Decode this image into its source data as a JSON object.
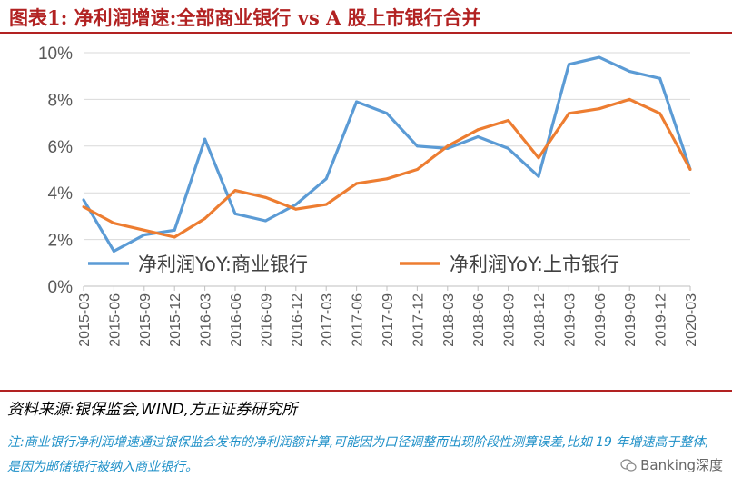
{
  "title": "图表1:  净利润增速:全部商业银行 vs  A 股上市银行合并",
  "source": "资料来源:银保监会,WIND,方正证券研究所",
  "note": "注:商业银行净利润增速通过银保监会发布的净利润额计算,可能因为口径调整而出现阶段性测算误差,比如 19 年增速高于整体,是因为邮储银行被纳入商业银行。",
  "watermark": "Banking深度",
  "icon": "wechat-icon",
  "colors": {
    "title": "#b22222",
    "series1": "#5b9bd5",
    "series2": "#ed7d31",
    "note": "#1e90c8"
  },
  "chart_data": {
    "type": "line",
    "categories": [
      "2015-03",
      "2015-06",
      "2015-09",
      "2015-12",
      "2016-03",
      "2016-06",
      "2016-09",
      "2016-12",
      "2017-03",
      "2017-06",
      "2017-09",
      "2017-12",
      "2018-03",
      "2018-06",
      "2018-09",
      "2018-12",
      "2019-03",
      "2019-06",
      "2019-09",
      "2019-12",
      "2020-03"
    ],
    "series": [
      {
        "name": "净利润YoY:商业银行",
        "values": [
          3.7,
          1.5,
          2.2,
          2.4,
          6.3,
          3.1,
          2.8,
          3.5,
          4.6,
          7.9,
          7.4,
          6.0,
          5.9,
          6.4,
          5.9,
          4.7,
          9.5,
          9.8,
          9.2,
          8.9,
          5.0
        ]
      },
      {
        "name": "净利润YoY:上市银行",
        "values": [
          3.4,
          2.7,
          2.4,
          2.1,
          2.9,
          4.1,
          3.8,
          3.3,
          3.5,
          4.4,
          4.6,
          5.0,
          6.0,
          6.7,
          7.1,
          5.5,
          7.4,
          7.6,
          8.0,
          7.4,
          5.0
        ]
      }
    ],
    "ylim": [
      0,
      10
    ],
    "yticks": [
      "0%",
      "2%",
      "4%",
      "6%",
      "8%",
      "10%"
    ],
    "legend_position": "inside-bottom",
    "grid": true
  }
}
